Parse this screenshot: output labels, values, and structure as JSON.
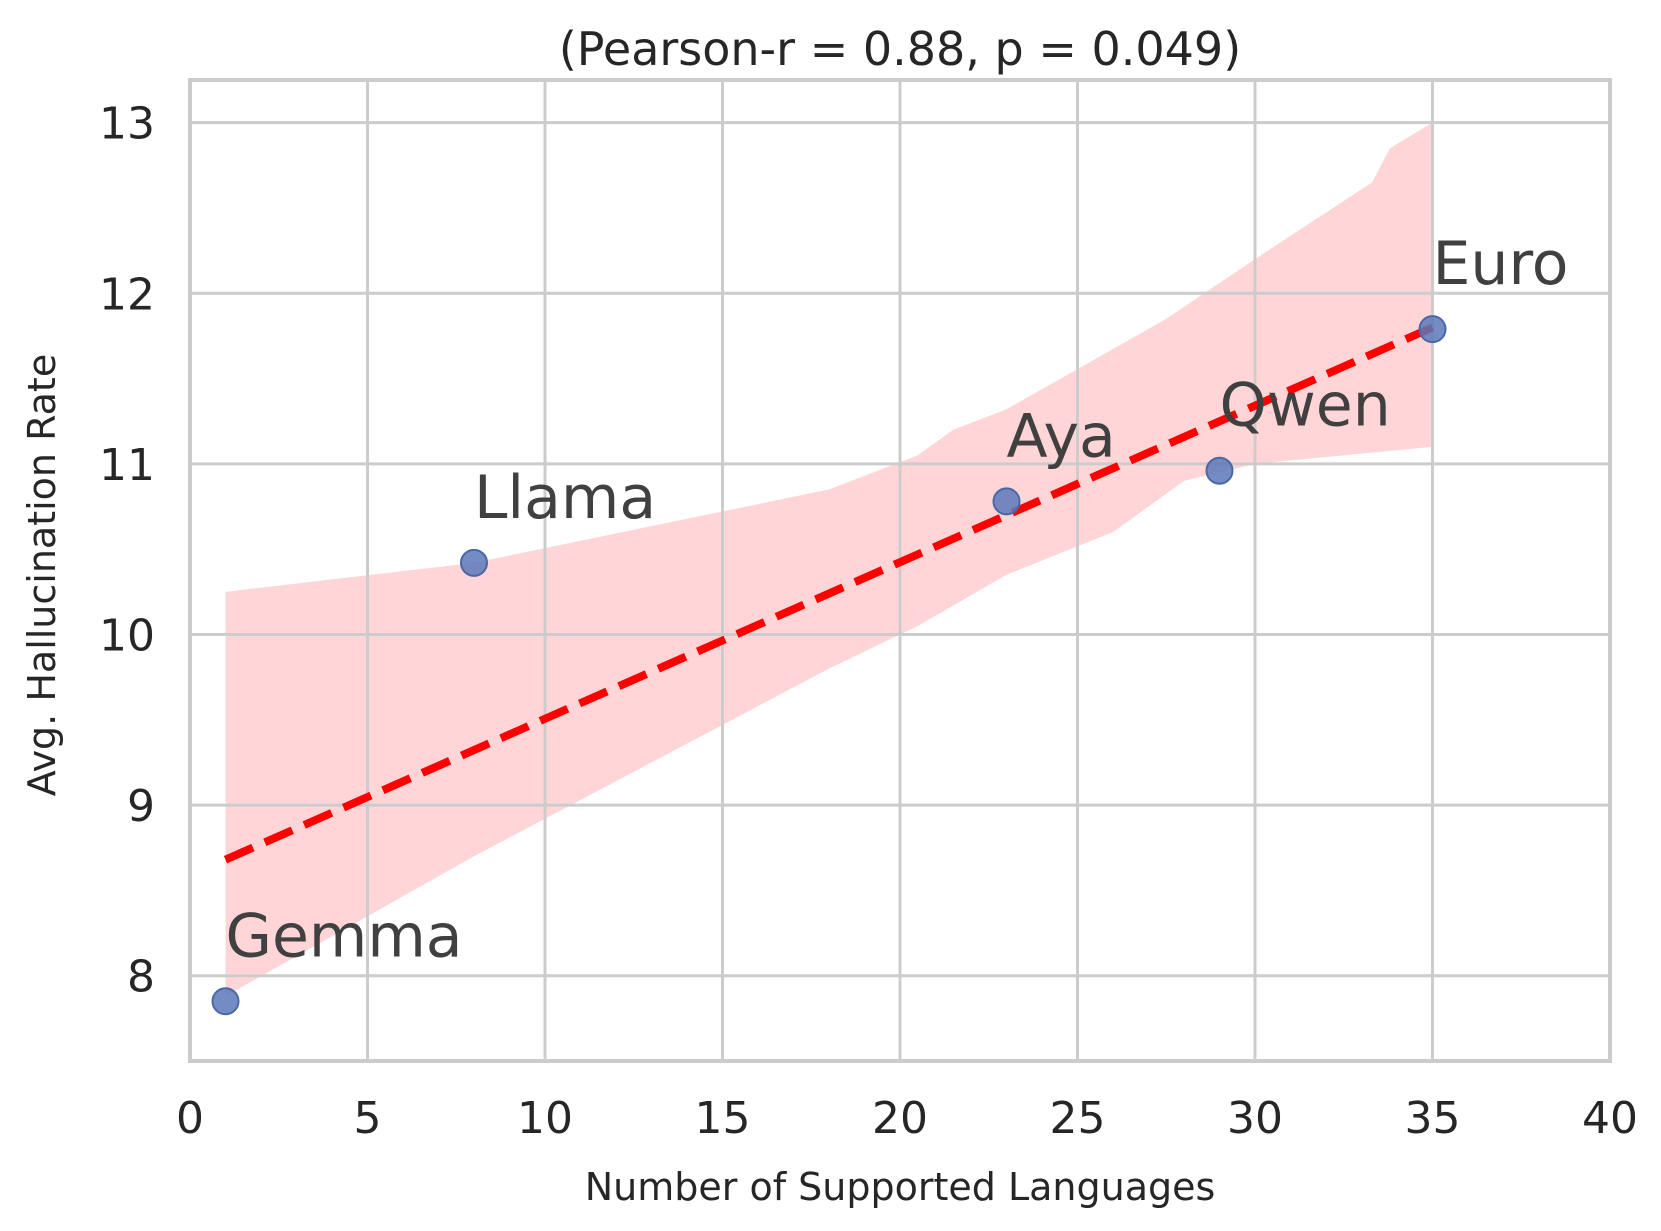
{
  "chart_data": {
    "type": "scatter",
    "title": "(Pearson-r = 0.88, p = 0.049)",
    "xlabel": "Number of Supported Languages",
    "ylabel": "Avg. Hallucination Rate",
    "xlim": [
      0,
      40
    ],
    "ylim": [
      7.5,
      13.25
    ],
    "xticks": [
      0,
      5,
      10,
      15,
      20,
      25,
      30,
      35,
      40
    ],
    "yticks": [
      8,
      9,
      10,
      11,
      12,
      13
    ],
    "grid": true,
    "points": [
      {
        "label": "Gemma",
        "x": 1,
        "y": 7.85
      },
      {
        "label": "Llama",
        "x": 8,
        "y": 10.42
      },
      {
        "label": "Aya",
        "x": 23,
        "y": 10.78
      },
      {
        "label": "Qwen",
        "x": 29,
        "y": 10.96
      },
      {
        "label": "Euro",
        "x": 35,
        "y": 11.79
      }
    ],
    "fit_line": {
      "style": "dashed",
      "x": [
        1,
        35
      ],
      "y": [
        8.68,
        11.8
      ]
    },
    "confidence_band": {
      "upper": [
        [
          1,
          10.25
        ],
        [
          8,
          10.42
        ],
        [
          18,
          10.85
        ],
        [
          20.5,
          11.05
        ],
        [
          21.5,
          11.2
        ],
        [
          23,
          11.32
        ],
        [
          27.5,
          11.85
        ],
        [
          30,
          12.2
        ],
        [
          33.3,
          12.65
        ],
        [
          33.8,
          12.85
        ],
        [
          35,
          13.0
        ]
      ],
      "lower": [
        [
          1,
          7.88
        ],
        [
          8,
          8.7
        ],
        [
          18,
          9.8
        ],
        [
          20.5,
          10.05
        ],
        [
          23,
          10.35
        ],
        [
          26,
          10.6
        ],
        [
          28,
          10.9
        ],
        [
          30,
          11.0
        ],
        [
          35,
          11.1
        ]
      ]
    },
    "colors": {
      "point": "#5a78b8",
      "point_edge": "#4a68a8",
      "fit_line": "#ff0000",
      "band": "#ffb3b6",
      "grid": "#cccccc"
    }
  }
}
